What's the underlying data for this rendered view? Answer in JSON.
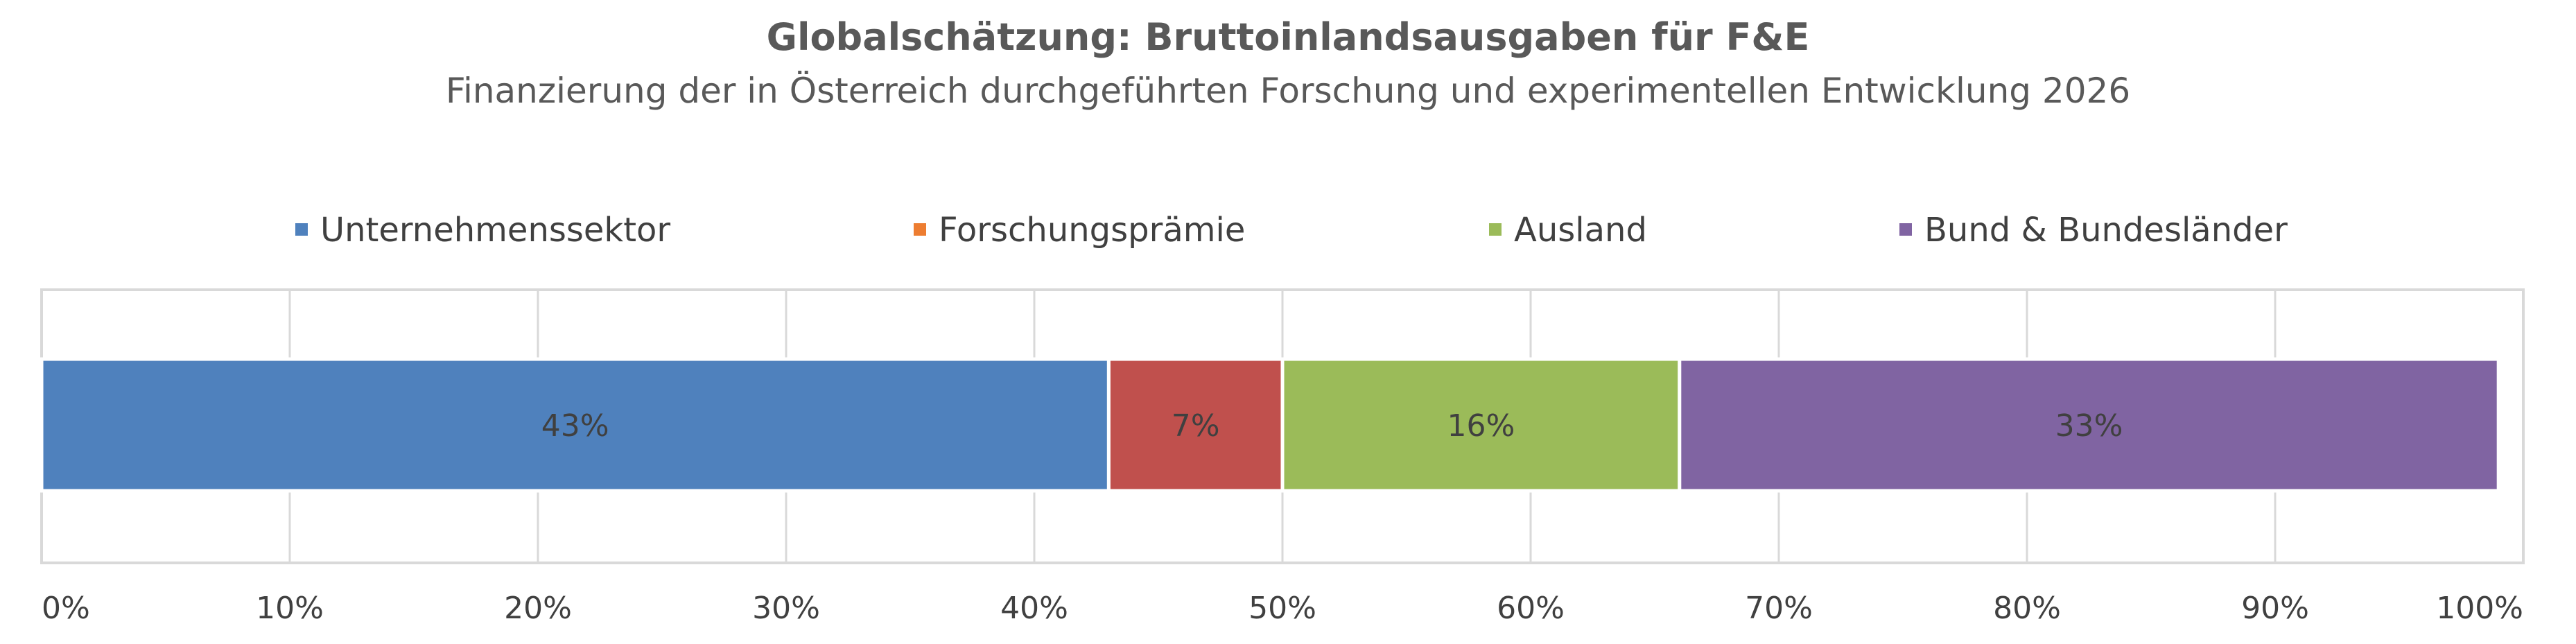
{
  "chart_data": {
    "type": "bar",
    "orientation": "horizontal",
    "stacked": "100%",
    "title": "Globalschätzung: Bruttoinlandsausgaben für F&E",
    "subtitle": "Finanzierung der in Österreich durchgeführten Forschung und experimentellen Entwicklung 2026",
    "categories": [
      ""
    ],
    "series": [
      {
        "name": "Unternehmenssektor",
        "values": [
          43
        ],
        "label": "43%",
        "color": "#4F81BD"
      },
      {
        "name": "Forschungsprämie",
        "values": [
          7
        ],
        "label": "7%",
        "color": "#C0504D"
      },
      {
        "name": "Ausland",
        "values": [
          16
        ],
        "label": "16%",
        "color": "#9BBB59"
      },
      {
        "name": "Bund & Bundesländer",
        "values": [
          33
        ],
        "label": "33%",
        "color": "#8064A2"
      }
    ],
    "xlim": [
      0,
      100
    ],
    "xticks": [
      "0%",
      "10%",
      "20%",
      "30%",
      "40%",
      "50%",
      "60%",
      "70%",
      "80%",
      "90%",
      "100%"
    ],
    "grid": true,
    "legend_position": "top"
  }
}
